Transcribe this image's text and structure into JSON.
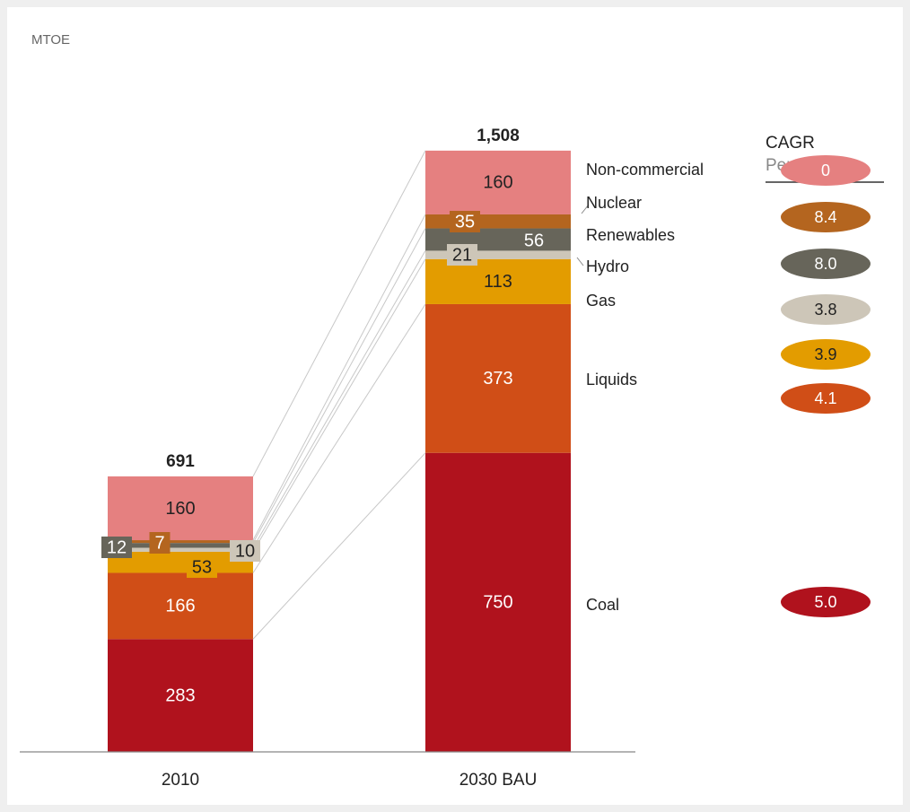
{
  "chart_data": {
    "type": "stacked_bar",
    "y_label": "MTOE",
    "categories": [
      "2010",
      "2030 BAU"
    ],
    "ylim": [
      0,
      1600
    ],
    "series": [
      {
        "name": "Coal",
        "color": "#b0121d",
        "values": [
          283,
          750
        ],
        "cagr": 5.0,
        "cagr_label": "5.0"
      },
      {
        "name": "Liquids",
        "color": "#d04e17",
        "values": [
          166,
          373
        ],
        "cagr": 4.1,
        "cagr_label": "4.1"
      },
      {
        "name": "Gas",
        "color": "#e39c00",
        "values": [
          53,
          113
        ],
        "cagr": 3.9,
        "cagr_label": "3.9"
      },
      {
        "name": "Hydro",
        "color": "#cdc6b8",
        "values": [
          10,
          21
        ],
        "cagr": 3.8,
        "cagr_label": "3.8"
      },
      {
        "name": "Renewables",
        "color": "#67655a",
        "values": [
          12,
          56
        ],
        "cagr": 8.0,
        "cagr_label": "8.0"
      },
      {
        "name": "Nuclear",
        "color": "#b4651f",
        "values": [
          7,
          35
        ],
        "cagr": 8.4,
        "cagr_label": "8.4"
      },
      {
        "name": "Non-commercial",
        "color": "#e58080",
        "values": [
          160,
          160
        ],
        "cagr": 0,
        "cagr_label": "0"
      }
    ],
    "totals": {
      "values": [
        691,
        1508
      ],
      "value_labels": [
        "691",
        "1,508"
      ]
    },
    "cagr_title": "CAGR",
    "cagr_subtitle": "Per cent"
  }
}
